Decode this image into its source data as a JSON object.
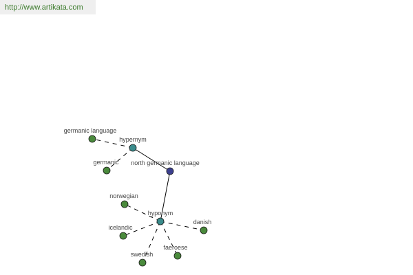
{
  "watermark": "http://www.artikata.com",
  "colors": {
    "word": "#4a8a3c",
    "relation": "#3a8c8c",
    "center": "#3b3f8e"
  },
  "nodes": [
    {
      "id": "center",
      "label": "north germanic language",
      "kind": "center"
    },
    {
      "id": "hypernym",
      "label": "hypernym",
      "kind": "relation"
    },
    {
      "id": "hyponym",
      "label": "hyponym",
      "kind": "relation"
    },
    {
      "id": "germanic-language",
      "label": "germanic language",
      "kind": "word"
    },
    {
      "id": "germanic",
      "label": "germanic",
      "kind": "word"
    },
    {
      "id": "norwegian",
      "label": "norwegian",
      "kind": "word"
    },
    {
      "id": "icelandic",
      "label": "icelandic",
      "kind": "word"
    },
    {
      "id": "danish",
      "label": "danish",
      "kind": "word"
    },
    {
      "id": "swedish",
      "label": "swedish",
      "kind": "word"
    },
    {
      "id": "faeroese",
      "label": "faeroese",
      "kind": "word"
    }
  ],
  "edges": [
    {
      "from": "center",
      "to": "hypernym",
      "style": "solid"
    },
    {
      "from": "center",
      "to": "hyponym",
      "style": "solid"
    },
    {
      "from": "hypernym",
      "to": "germanic-language",
      "style": "dashed"
    },
    {
      "from": "hypernym",
      "to": "germanic",
      "style": "dashed"
    },
    {
      "from": "hyponym",
      "to": "norwegian",
      "style": "dashed"
    },
    {
      "from": "hyponym",
      "to": "icelandic",
      "style": "dashed"
    },
    {
      "from": "hyponym",
      "to": "danish",
      "style": "dashed"
    },
    {
      "from": "hyponym",
      "to": "swedish",
      "style": "dashed"
    },
    {
      "from": "hyponym",
      "to": "faeroese",
      "style": "dashed"
    }
  ]
}
